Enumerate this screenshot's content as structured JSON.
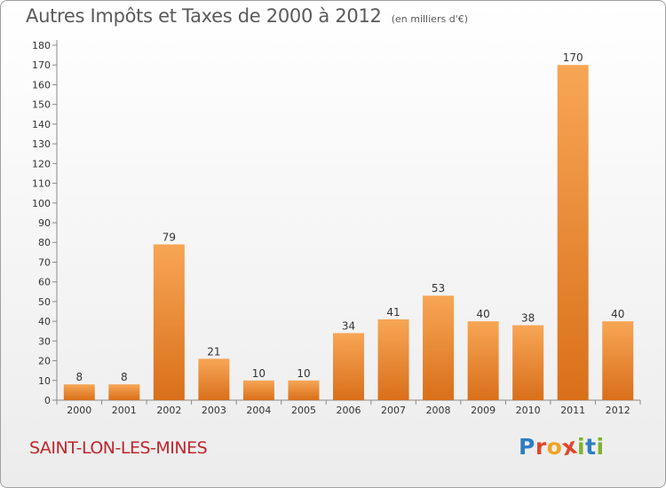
{
  "header": {
    "title": "Autres Impôts et Taxes de 2000 à 2012",
    "unit": "(en milliers d'€)"
  },
  "footer": {
    "commune": "SAINT-LON-LES-MINES",
    "logo": "Proxiti"
  },
  "colors": {
    "bar_light": "#f7a655",
    "bar_dark": "#d96f1a",
    "commune": "#c0262c",
    "logo_letters": [
      "#2f7dc2",
      "#e2452a",
      "#f2a325",
      "#e2452a",
      "#7fb22e",
      "#2f7dc2",
      "#7fb22e"
    ]
  },
  "chart_data": {
    "type": "bar",
    "title": "Autres Impôts et Taxes de 2000 à 2012",
    "subtitle": "(en milliers d'€)",
    "categories": [
      "2000",
      "2001",
      "2002",
      "2003",
      "2004",
      "2005",
      "2006",
      "2007",
      "2008",
      "2009",
      "2010",
      "2011",
      "2012"
    ],
    "values": [
      8,
      8,
      79,
      21,
      10,
      10,
      34,
      41,
      53,
      40,
      38,
      170,
      40
    ],
    "xlabel": "",
    "ylabel": "",
    "ylim": [
      0,
      180
    ],
    "yticks": [
      0,
      10,
      20,
      30,
      40,
      50,
      60,
      70,
      80,
      90,
      100,
      110,
      120,
      130,
      140,
      150,
      160,
      170,
      180
    ],
    "grid": false,
    "data_labels": true
  }
}
